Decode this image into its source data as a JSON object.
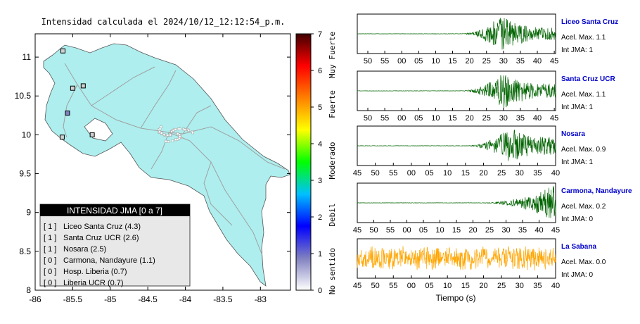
{
  "map": {
    "title": "Intensidad calculada el 2024/10/12_12:12:54_p.m.",
    "land_color": "#aeeeee",
    "road_color": "#a0a0a0",
    "x_ticks": [
      "-86",
      "-85.5",
      "-85",
      "-84.5",
      "-84",
      "-83.5",
      "-83"
    ],
    "y_ticks": [
      "8",
      "8.5",
      "9",
      "9.5",
      "10",
      "10.5",
      "11"
    ],
    "xlim": [
      -86,
      -82.6
    ],
    "ylim": [
      8,
      11.3
    ]
  },
  "colorbar": {
    "ticks": [
      "0",
      "1",
      "2",
      "3",
      "4",
      "5",
      "6",
      "7"
    ],
    "labels": [
      "No sentido",
      "Debil",
      "Moderado",
      "Fuerte",
      "Muy Fuerte"
    ],
    "colors": [
      "#ffffff",
      "#8080c0",
      "#0000ff",
      "#00c0ff",
      "#00ff00",
      "#ffff00",
      "#ff8000",
      "#ff0000",
      "#400000"
    ]
  },
  "legend": {
    "title": "INTENSIDAD JMA [0 a 7]",
    "items": [
      {
        "level": "[ 1 ]",
        "name": "Liceo Santa Cruz (4.3)"
      },
      {
        "level": "[ 1 ]",
        "name": "Santa Cruz UCR (2.6)"
      },
      {
        "level": "[ 1 ]",
        "name": "Nosara (2.5)"
      },
      {
        "level": "[ 0 ]",
        "name": "Carmona, Nandayure (1.1)"
      },
      {
        "level": "[ 0 ]",
        "name": "Hosp. Liberia (0.7)"
      },
      {
        "level": "[ 0 ]",
        "name": "Liberia UCR (0.7)"
      }
    ]
  },
  "stations_map": [
    {
      "lon": -85.63,
      "lat": 11.08,
      "color": "#d0d0d0"
    },
    {
      "lon": -85.36,
      "lat": 10.63,
      "color": "#d0d0d0"
    },
    {
      "lon": -85.5,
      "lat": 10.6,
      "color": "#d0d0d0"
    },
    {
      "lon": -85.57,
      "lat": 10.28,
      "color": "#8080c0"
    },
    {
      "lon": -85.64,
      "lat": 9.97,
      "color": "#d0d0d0"
    },
    {
      "lon": -85.24,
      "lat": 10.0,
      "color": "#d0d0d0"
    }
  ],
  "chart_data": {
    "type": "line",
    "x_label": "Tiempo (s)",
    "series": [
      {
        "name": "Liceo Santa Cruz",
        "acel_label": "Acel. Max. 1.1",
        "jma_label": "Int JMA: 1",
        "color": "#006400",
        "ticks": [
          "50",
          "55",
          "00",
          "05",
          "10",
          "15",
          "20",
          "25",
          "30",
          "35",
          "40",
          "45"
        ],
        "tick_offset": 3.5,
        "onset": 0.52,
        "peak": 0.72,
        "decay": 0.35,
        "noise": 0.01
      },
      {
        "name": "Santa Cruz UCR",
        "acel_label": "Acel. Max. 1.1",
        "jma_label": "Int JMA: 1",
        "color": "#006400",
        "ticks": [
          "50",
          "55",
          "00",
          "05",
          "10",
          "15",
          "20",
          "25",
          "30",
          "35",
          "40",
          "45"
        ],
        "tick_offset": 3.5,
        "onset": 0.52,
        "peak": 0.74,
        "decay": 0.4,
        "noise": 0.01
      },
      {
        "name": "Nosara",
        "acel_label": "Acel. Max. 0.9",
        "jma_label": "Int JMA: 1",
        "color": "#006400",
        "ticks": [
          "45",
          "50",
          "55",
          "00",
          "05",
          "10",
          "15",
          "20",
          "25",
          "30",
          "35",
          "40"
        ],
        "tick_offset": 0,
        "onset": 0.55,
        "peak": 0.77,
        "decay": 0.5,
        "noise": 0.01
      },
      {
        "name": "Carmona, Nandayure",
        "acel_label": "Acel. Max. 0.2",
        "jma_label": "Int JMA: 0",
        "color": "#006400",
        "ticks": [
          "45",
          "50",
          "55",
          "00",
          "05",
          "10",
          "15",
          "20",
          "25",
          "30",
          "35",
          "40",
          "45"
        ],
        "tick_offset": 0,
        "onset": 0.62,
        "peak": 1.0,
        "decay": 0.8,
        "noise": 0.01
      },
      {
        "name": "La Sabana",
        "acel_label": "Acel. Max. 0.0",
        "jma_label": "Int JMA: 0",
        "color": "#ffa500",
        "ticks": [
          "45",
          "50",
          "55",
          "00",
          "05",
          "10",
          "15",
          "20",
          "25",
          "30",
          "35",
          "40"
        ],
        "tick_offset": 0,
        "onset": 0,
        "peak": 0,
        "decay": 0,
        "noise": 0.55
      }
    ]
  }
}
